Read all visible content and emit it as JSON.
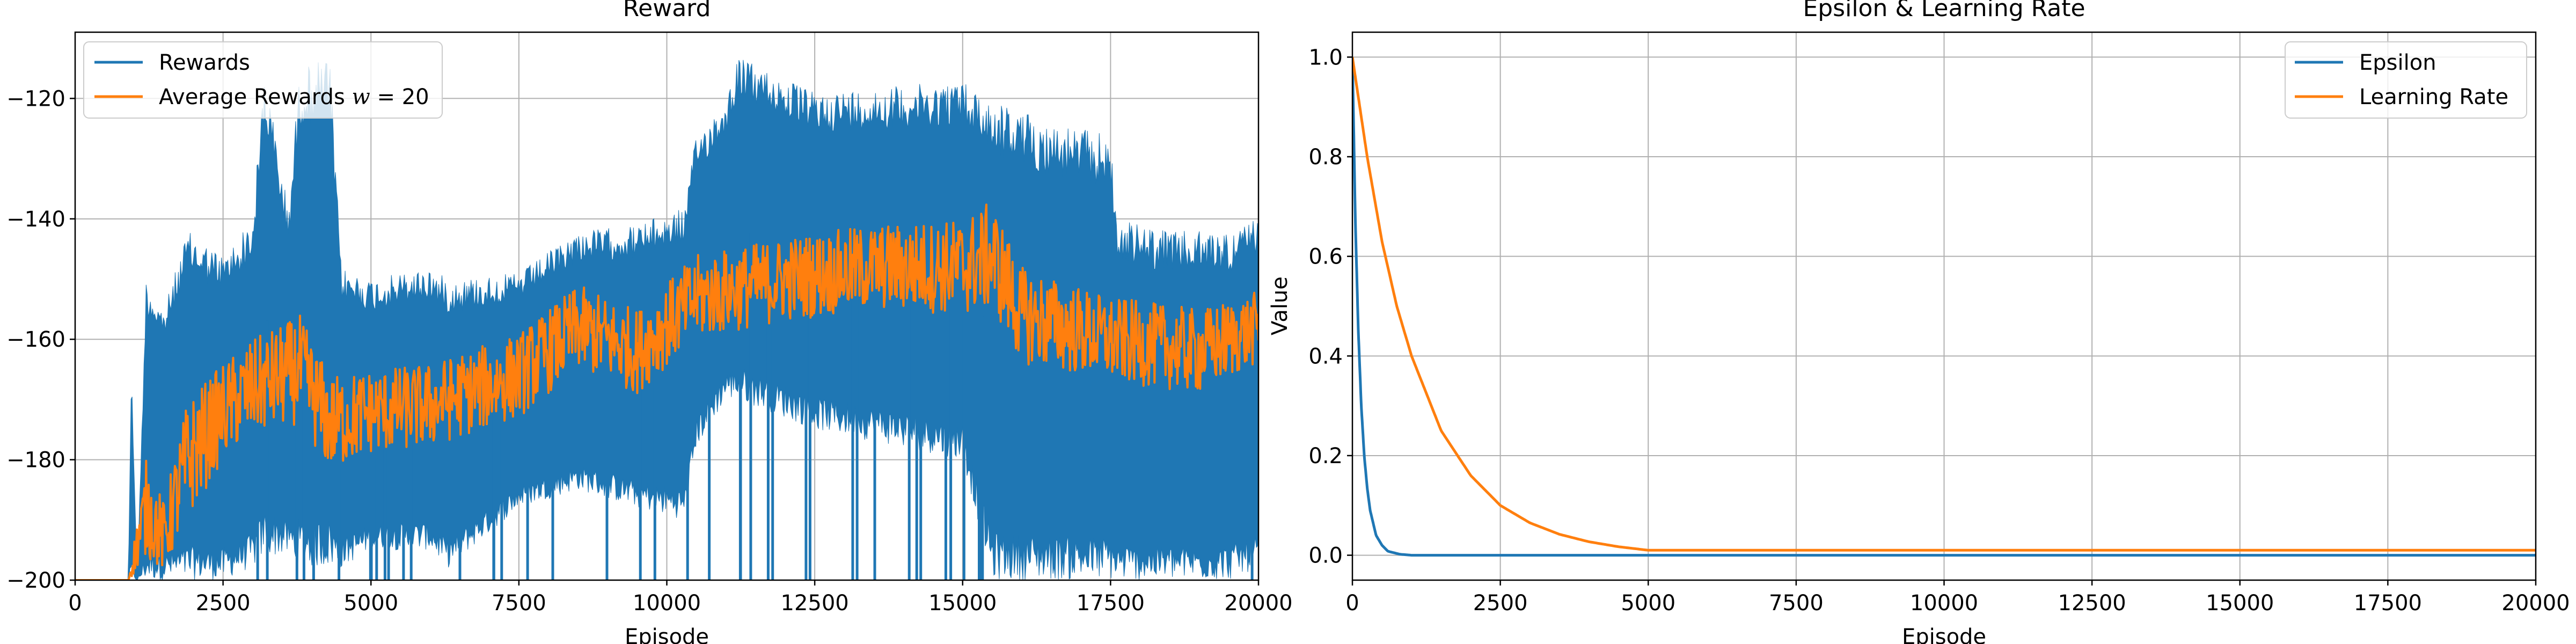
{
  "colors": {
    "series1": "#1f77b4",
    "series2": "#ff7f0e",
    "grid": "#b0b0b0",
    "axis": "#000000",
    "background": "#ffffff"
  },
  "chart_data": [
    {
      "type": "line",
      "title": "Reward",
      "xlabel": "Episode",
      "ylabel": "",
      "xlim": [
        0,
        20000
      ],
      "ylim": [
        -200,
        -109
      ],
      "xticks": [
        0,
        2500,
        5000,
        7500,
        10000,
        12500,
        15000,
        17500,
        20000
      ],
      "yticks": [
        -200,
        -180,
        -160,
        -140,
        -120
      ],
      "xtick_labels": [
        "0",
        "2500",
        "5000",
        "7500",
        "10000",
        "12500",
        "15000",
        "17500",
        "20000"
      ],
      "ytick_labels": [
        "−200",
        "−180",
        "−160",
        "−140",
        "−120"
      ],
      "grid": true,
      "legend_position": "top-left",
      "series": [
        {
          "name": "Rewards",
          "style": "noisy-band",
          "points": [
            {
              "x": 0,
              "lo": -200,
              "hi": -200
            },
            {
              "x": 900,
              "lo": -200,
              "hi": -200
            },
            {
              "x": 950,
              "lo": -200,
              "hi": -164
            },
            {
              "x": 1050,
              "lo": -200,
              "hi": -200
            },
            {
              "x": 1200,
              "lo": -200,
              "hi": -150
            },
            {
              "x": 1500,
              "lo": -200,
              "hi": -155
            },
            {
              "x": 1900,
              "lo": -200,
              "hi": -142
            },
            {
              "x": 2500,
              "lo": -200,
              "hi": -146
            },
            {
              "x": 3000,
              "lo": -198,
              "hi": -140
            },
            {
              "x": 3200,
              "lo": -196,
              "hi": -115
            },
            {
              "x": 3600,
              "lo": -196,
              "hi": -138
            },
            {
              "x": 3800,
              "lo": -198,
              "hi": -115
            },
            {
              "x": 4300,
              "lo": -198,
              "hi": -113
            },
            {
              "x": 4500,
              "lo": -198,
              "hi": -148
            },
            {
              "x": 5000,
              "lo": -195,
              "hi": -150
            },
            {
              "x": 6000,
              "lo": -195,
              "hi": -148
            },
            {
              "x": 6300,
              "lo": -198,
              "hi": -150
            },
            {
              "x": 7500,
              "lo": -188,
              "hi": -149
            },
            {
              "x": 8500,
              "lo": -185,
              "hi": -142
            },
            {
              "x": 9500,
              "lo": -188,
              "hi": -141
            },
            {
              "x": 10300,
              "lo": -190,
              "hi": -138
            },
            {
              "x": 10500,
              "lo": -178,
              "hi": -126
            },
            {
              "x": 11000,
              "lo": -170,
              "hi": -120
            },
            {
              "x": 11200,
              "lo": -170,
              "hi": -113
            },
            {
              "x": 12500,
              "lo": -175,
              "hi": -119
            },
            {
              "x": 15000,
              "lo": -180,
              "hi": -117
            },
            {
              "x": 15500,
              "lo": -200,
              "hi": -120
            },
            {
              "x": 16500,
              "lo": -200,
              "hi": -124
            },
            {
              "x": 17500,
              "lo": -200,
              "hi": -126
            },
            {
              "x": 17600,
              "lo": -200,
              "hi": -140
            },
            {
              "x": 18500,
              "lo": -200,
              "hi": -142
            },
            {
              "x": 19500,
              "lo": -200,
              "hi": -142
            },
            {
              "x": 20000,
              "lo": -198,
              "hi": -140
            }
          ]
        },
        {
          "name": "Average Rewards $w = 20$",
          "name_display": {
            "prefix": "Average Rewards ",
            "var": "w",
            "suffix": " = 20"
          },
          "style": "noisy-line",
          "points": [
            {
              "x": 0,
              "y": -200,
              "amp": 0
            },
            {
              "x": 900,
              "y": -200,
              "amp": 0
            },
            {
              "x": 1000,
              "y": -196,
              "amp": 3
            },
            {
              "x": 1200,
              "y": -188,
              "amp": 8
            },
            {
              "x": 1500,
              "y": -193,
              "amp": 6
            },
            {
              "x": 1900,
              "y": -180,
              "amp": 10
            },
            {
              "x": 2500,
              "y": -172,
              "amp": 8
            },
            {
              "x": 3000,
              "y": -168,
              "amp": 8
            },
            {
              "x": 3800,
              "y": -165,
              "amp": 9
            },
            {
              "x": 4300,
              "y": -174,
              "amp": 8
            },
            {
              "x": 5000,
              "y": -172,
              "amp": 7
            },
            {
              "x": 6000,
              "y": -171,
              "amp": 7
            },
            {
              "x": 7500,
              "y": -166,
              "amp": 7
            },
            {
              "x": 8500,
              "y": -158,
              "amp": 7
            },
            {
              "x": 9500,
              "y": -162,
              "amp": 7
            },
            {
              "x": 10500,
              "y": -153,
              "amp": 7
            },
            {
              "x": 12000,
              "y": -150,
              "amp": 7
            },
            {
              "x": 13500,
              "y": -148,
              "amp": 7
            },
            {
              "x": 15000,
              "y": -148,
              "amp": 8
            },
            {
              "x": 15500,
              "y": -146,
              "amp": 9
            },
            {
              "x": 16000,
              "y": -156,
              "amp": 8
            },
            {
              "x": 17500,
              "y": -160,
              "amp": 7
            },
            {
              "x": 19000,
              "y": -162,
              "amp": 7
            },
            {
              "x": 20000,
              "y": -158,
              "amp": 6
            }
          ]
        }
      ]
    },
    {
      "type": "line",
      "title": "Epsilon & Learning Rate",
      "xlabel": "Episode",
      "ylabel": "Value",
      "xlim": [
        0,
        20000
      ],
      "ylim": [
        -0.05,
        1.05
      ],
      "xticks": [
        0,
        2500,
        5000,
        7500,
        10000,
        12500,
        15000,
        17500,
        20000
      ],
      "yticks": [
        0.0,
        0.2,
        0.4,
        0.6,
        0.8,
        1.0
      ],
      "xtick_labels": [
        "0",
        "2500",
        "5000",
        "7500",
        "10000",
        "12500",
        "15000",
        "17500",
        "20000"
      ],
      "ytick_labels": [
        "0.0",
        "0.2",
        "0.4",
        "0.6",
        "0.8",
        "1.0"
      ],
      "grid": true,
      "legend_position": "top-right",
      "series": [
        {
          "name": "Epsilon",
          "x": [
            0,
            50,
            100,
            150,
            200,
            250,
            300,
            400,
            500,
            600,
            800,
            1000,
            20000
          ],
          "y": [
            1.0,
            0.67,
            0.45,
            0.3,
            0.2,
            0.135,
            0.09,
            0.04,
            0.02,
            0.008,
            0.002,
            0.0,
            0.0
          ]
        },
        {
          "name": "Learning Rate",
          "x": [
            0,
            250,
            500,
            750,
            1000,
            1500,
            2000,
            2500,
            3000,
            3500,
            4000,
            4500,
            5000,
            20000
          ],
          "y": [
            1.0,
            0.8,
            0.63,
            0.5,
            0.4,
            0.25,
            0.16,
            0.1,
            0.065,
            0.042,
            0.027,
            0.017,
            0.01,
            0.01
          ]
        }
      ]
    }
  ]
}
